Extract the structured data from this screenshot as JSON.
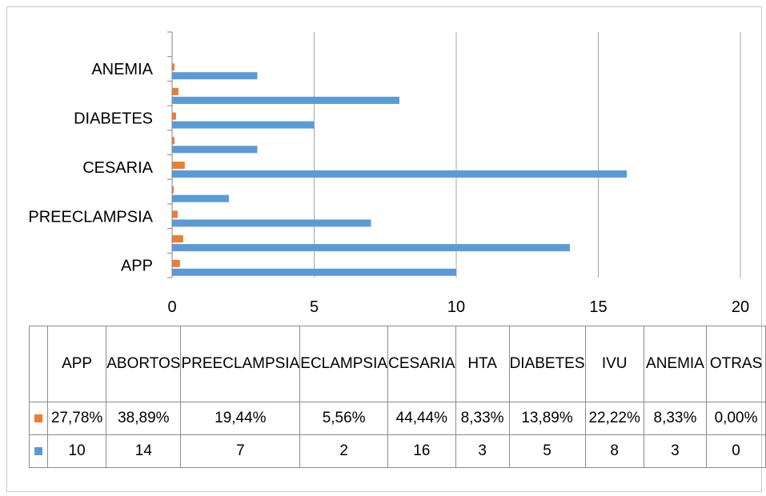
{
  "chart_data": {
    "type": "bar",
    "orientation": "horizontal",
    "categories": [
      "APP",
      "ABORTOS",
      "PREECLAMPSIA",
      "ECLAMPSIA",
      "CESARIA",
      "HTA",
      "DIABETES",
      "IVU",
      "ANEMIA",
      "OTRAS"
    ],
    "axis_category_labels": [
      "ANEMIA",
      "DIABETES",
      "CESARIA",
      "PREECLAMPSIA",
      "APP"
    ],
    "table_headers": [
      "APP",
      "ABORTOS",
      "PREECLAMPSIA",
      "ECLAMPSIA",
      "CESARIA",
      "HTA",
      "DIABETES",
      "IVU",
      "ANEMIA",
      "OTRAS"
    ],
    "series": [
      {
        "color": "#ED7D31",
        "values": [
          0.2778,
          0.3889,
          0.1944,
          0.0556,
          0.4444,
          0.0833,
          0.1389,
          0.2222,
          0.0833,
          0.0
        ],
        "labels": [
          "27,78%",
          "38,89%",
          "19,44%",
          "5,56%",
          "44,44%",
          "8,33%",
          "13,89%",
          "22,22%",
          "8,33%",
          "0,00%"
        ]
      },
      {
        "color": "#5B9BD5",
        "values": [
          10,
          14,
          7,
          2,
          16,
          3,
          5,
          8,
          3,
          0
        ],
        "labels": [
          "10",
          "14",
          "7",
          "2",
          "16",
          "3",
          "5",
          "8",
          "3",
          "0"
        ]
      }
    ],
    "xlim": [
      0,
      20
    ],
    "xticks": [
      "0",
      "5",
      "10",
      "15",
      "20"
    ],
    "grid": true,
    "legend": "data-table"
  }
}
